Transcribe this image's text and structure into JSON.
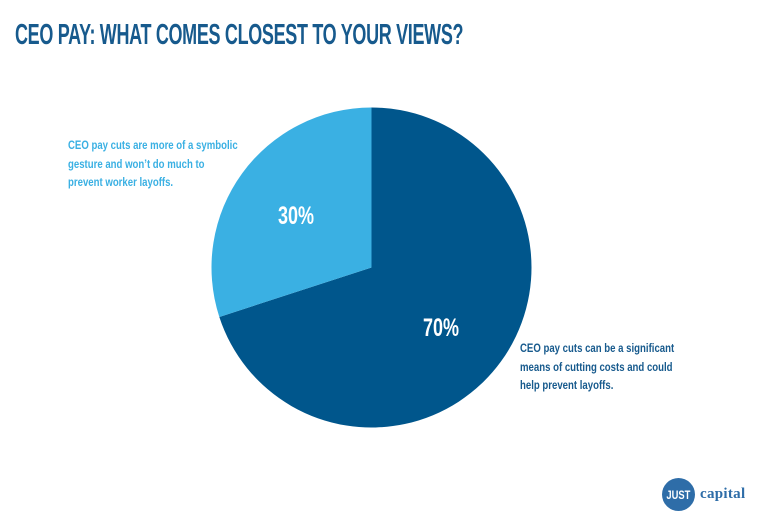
{
  "title": "CEO PAY: WHAT COMES CLOSEST TO YOUR VIEWS?",
  "chart_data": {
    "type": "pie",
    "title": "CEO PAY: WHAT COMES CLOSEST TO YOUR VIEWS?",
    "start_angle_deg": 0,
    "direction": "clockwise",
    "legend_position": "callouts",
    "slices": [
      {
        "name": "significant-cost-cutting",
        "value": 70,
        "pct_label": "70%",
        "color": "#00568c",
        "label": "CEO pay cuts can be a significant means of cutting costs and could help prevent layoffs."
      },
      {
        "name": "symbolic-gesture",
        "value": 30,
        "pct_label": "30%",
        "color": "#3ab0e3",
        "label": "CEO pay cuts are more of a symbolic gesture and won’t do much to prevent worker layoffs."
      }
    ]
  },
  "callouts": {
    "left": {
      "lines": [
        "CEO pay cuts are more of a symbolic",
        "gesture and won’t do much to",
        "prevent worker layoffs."
      ]
    },
    "right": {
      "lines": [
        "CEO pay cuts can be a significant",
        "means of cutting costs and could",
        "help prevent layoffs."
      ]
    }
  },
  "logo": {
    "circle_text": "JUST",
    "wordmark": "capital"
  },
  "colors": {
    "dark-blue": "#00568c",
    "light-blue": "#3ab0e3",
    "title-blue": "#175a8d",
    "logo-blue": "#2e6da8",
    "white": "#ffffff"
  }
}
